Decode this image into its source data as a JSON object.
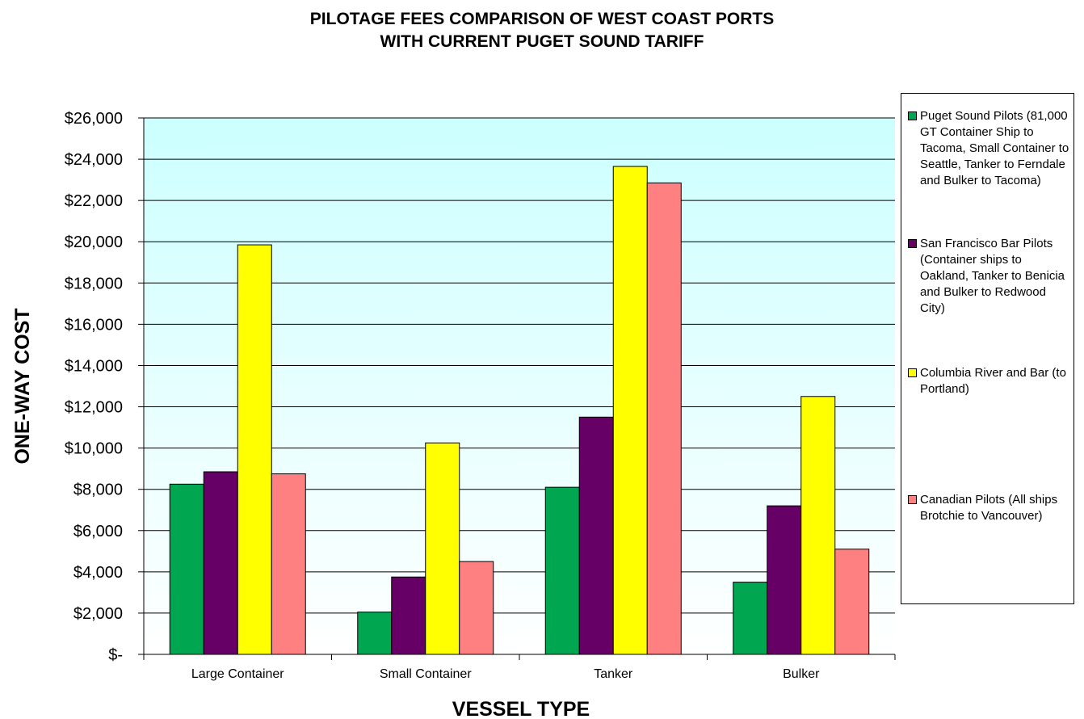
{
  "chart_data": {
    "type": "bar",
    "title_line1": "PILOTAGE FEES COMPARISON OF WEST COAST PORTS",
    "title_line2": "WITH CURRENT PUGET SOUND TARIFF",
    "xlabel": "VESSEL TYPE",
    "ylabel": "ONE-WAY COST",
    "ylim": [
      0,
      26000
    ],
    "y_ticks": [
      {
        "value": 0,
        "label": "$-"
      },
      {
        "value": 2000,
        "label": "$2,000"
      },
      {
        "value": 4000,
        "label": "$4,000"
      },
      {
        "value": 6000,
        "label": "$6,000"
      },
      {
        "value": 8000,
        "label": "$8,000"
      },
      {
        "value": 10000,
        "label": "$10,000"
      },
      {
        "value": 12000,
        "label": "$12,000"
      },
      {
        "value": 14000,
        "label": "$14,000"
      },
      {
        "value": 16000,
        "label": "$16,000"
      },
      {
        "value": 18000,
        "label": "$18,000"
      },
      {
        "value": 20000,
        "label": "$20,000"
      },
      {
        "value": 22000,
        "label": "$22,000"
      },
      {
        "value": 24000,
        "label": "$24,000"
      },
      {
        "value": 26000,
        "label": "$26,000"
      }
    ],
    "grid": true,
    "legend_position": "right",
    "categories": [
      "Large Container",
      "Small Container",
      "Tanker",
      "Bulker"
    ],
    "series": [
      {
        "name": "Puget Sound Pilots (81,000 GT Container Ship to Tacoma, Small Container to Seattle, Tanker to Ferndale and Bulker to Tacoma)",
        "color": "#00a650",
        "values": [
          8250,
          2050,
          8100,
          3500
        ]
      },
      {
        "name": "San Francisco Bar Pilots (Container ships to Oakland, Tanker to Benicia and Bulker to Redwood City)",
        "color": "#660066",
        "values": [
          8850,
          3750,
          11500,
          7200
        ]
      },
      {
        "name": "Columbia River and Bar (to Portland)",
        "color": "#ffff00",
        "values": [
          19850,
          10250,
          23650,
          12500
        ]
      },
      {
        "name": "Canadian Pilots (All ships Brotchie to Vancouver)",
        "color": "#ff8080",
        "values": [
          8750,
          4500,
          22850,
          5100
        ]
      }
    ],
    "plot_background_top": "#ccffff",
    "plot_background_bottom": "#ffffff"
  }
}
